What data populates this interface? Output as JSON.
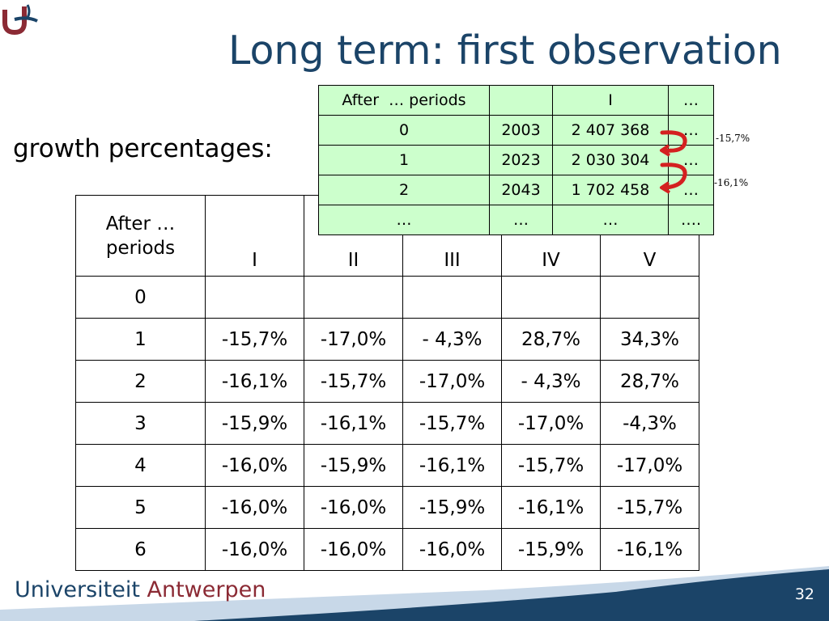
{
  "slide": {
    "title": "Long term: first observation",
    "subtitle": "growth percentages:",
    "page_number": "32",
    "brand_part1": "Universiteit",
    "brand_part2": "Antwerpen",
    "accent_color": "#1b4468",
    "brand_red": "#8b2a34"
  },
  "main_table": {
    "headers": [
      "After …\nperiods",
      "I",
      "II",
      "III",
      "IV",
      "V"
    ],
    "rows": [
      [
        "0",
        "",
        "",
        "",
        "",
        ""
      ],
      [
        "1",
        "-15,7%",
        "-17,0%",
        "- 4,3%",
        "28,7%",
        "34,3%"
      ],
      [
        "2",
        "-16,1%",
        "-15,7%",
        "-17,0%",
        "- 4,3%",
        "28,7%"
      ],
      [
        "3",
        "-15,9%",
        "-16,1%",
        "-15,7%",
        "-17,0%",
        "-4,3%"
      ],
      [
        "4",
        "-16,0%",
        "-15,9%",
        "-16,1%",
        "-15,7%",
        "-17,0%"
      ],
      [
        "5",
        "-16,0%",
        "-16,0%",
        "-15,9%",
        "-16,1%",
        "-15,7%"
      ],
      [
        "6",
        "-16,0%",
        "-16,0%",
        "-16,0%",
        "-15,9%",
        "-16,1%"
      ]
    ]
  },
  "inset_table": {
    "headers": [
      "After  … periods",
      "",
      "I",
      "…"
    ],
    "rows": [
      [
        "0",
        "2003",
        "2 407 368",
        "…"
      ],
      [
        "1",
        "2023",
        "2 030 304",
        "…"
      ],
      [
        "2",
        "2043",
        "1 702 458",
        "…"
      ],
      [
        "…",
        "…",
        "…",
        "…."
      ]
    ]
  },
  "annotations": [
    "-15,7%",
    "-16,1%"
  ]
}
